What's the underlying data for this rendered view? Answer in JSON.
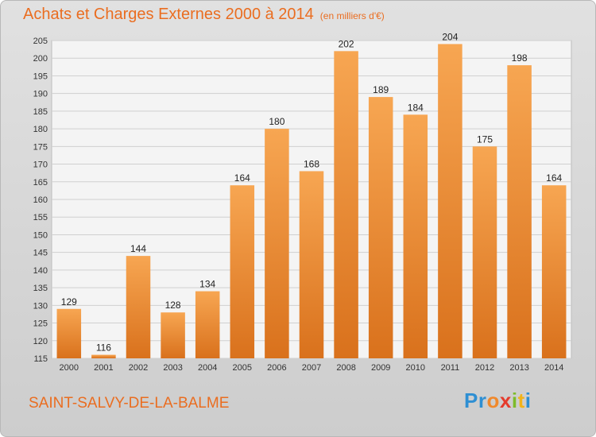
{
  "title": "Achats et Charges Externes 2000 à 2014",
  "subtitle": "(en milliers d'€)",
  "place_name": "SAINT-SALVY-DE-LA-BALME",
  "logo_text": "Proxiti",
  "colors": {
    "bar_light": "#f7a652",
    "bar_dark": "#d9711c",
    "accent": "#ea6d20",
    "plot_bg": "#f4f4f4",
    "grid": "#d0d0d0"
  },
  "chart_data": {
    "type": "bar",
    "categories": [
      "2000",
      "2001",
      "2002",
      "2003",
      "2004",
      "2005",
      "2006",
      "2007",
      "2008",
      "2009",
      "2010",
      "2011",
      "2012",
      "2013",
      "2014"
    ],
    "values": [
      129,
      116,
      144,
      128,
      134,
      164,
      180,
      168,
      202,
      189,
      184,
      204,
      175,
      198,
      164
    ],
    "ylim": [
      115,
      205
    ],
    "yticks": [
      115,
      120,
      125,
      130,
      135,
      140,
      145,
      150,
      155,
      160,
      165,
      170,
      175,
      180,
      185,
      190,
      195,
      200,
      205
    ],
    "grid": true,
    "data_labels": true
  }
}
